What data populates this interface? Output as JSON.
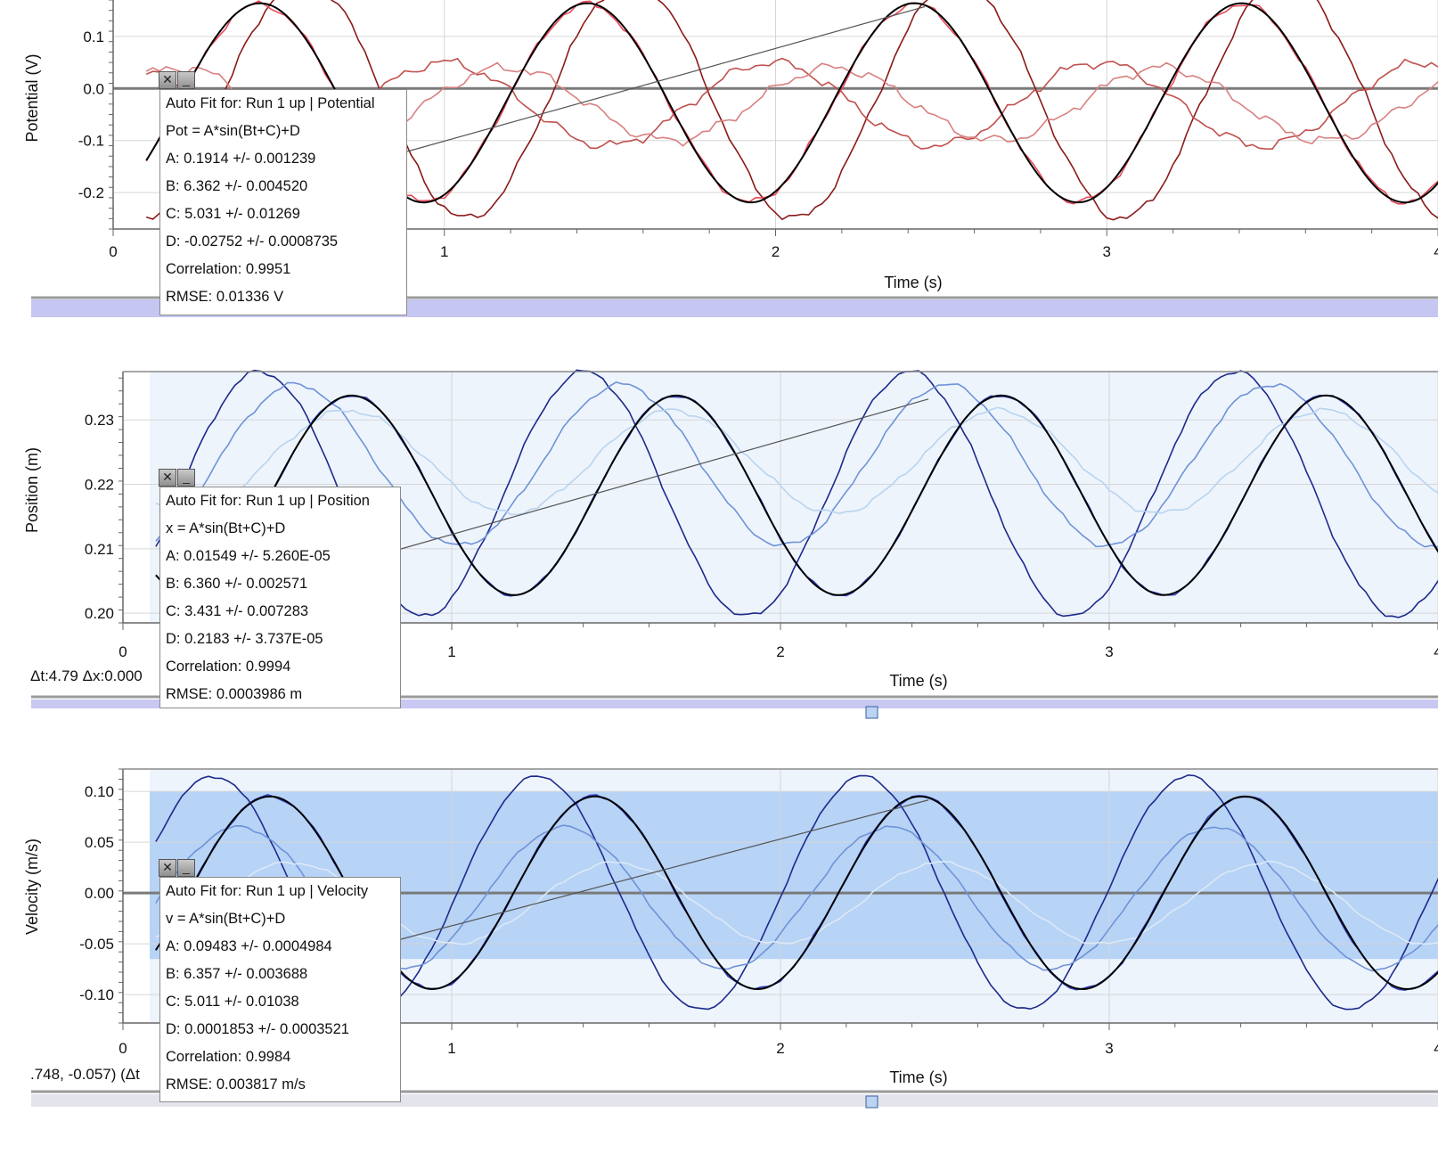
{
  "chart_data": [
    {
      "type": "line",
      "panel": "potential",
      "xlabel": "Time (s)",
      "ylabel": "Potential (V)",
      "xlim": [
        0,
        4
      ],
      "ylim": [
        -0.27,
        0.17
      ],
      "xticks": [
        "0",
        "1",
        "2",
        "3",
        "4"
      ],
      "yticks": [
        "0.1",
        "0.0",
        "-0.1",
        "-0.2"
      ],
      "ytick_values": [
        0.1,
        0.0,
        -0.1,
        -0.2
      ],
      "series": [
        {
          "color": "#8b1a1a",
          "amplitude": 0.23,
          "phase": 4.2,
          "offset": -0.02,
          "noise": 0.01
        },
        {
          "color": "#c0504d",
          "amplitude": 0.08,
          "phase": 1.5,
          "offset": -0.03,
          "noise": 0.012
        },
        {
          "color": "#d88080",
          "amplitude": 0.07,
          "phase": 0.3,
          "offset": -0.03,
          "noise": 0.012
        },
        {
          "color": "#e84a5a",
          "amplitude": 0.19,
          "phase": 5.03,
          "offset": -0.028,
          "noise": 0.008
        }
      ],
      "fit": {
        "A": 0.1914,
        "B": 6.362,
        "C": 5.031,
        "D": -0.02752,
        "color": "#000000"
      },
      "fit_box": [
        "Auto Fit for: Run 1 up | Potential",
        "Pot = A*sin(Bt+C)+D",
        "A: 0.1914 +/- 0.001239",
        "B: 6.362 +/- 0.004520",
        "C: 5.031 +/- 0.01269",
        "D: -0.02752 +/- 0.0008735",
        "Correlation: 0.9951",
        "RMSE: 0.01336 V"
      ]
    },
    {
      "type": "line",
      "panel": "position",
      "xlabel": "Time (s)",
      "ylabel": "Position (m)",
      "xlim": [
        0,
        4
      ],
      "ylim": [
        0.1985,
        0.2375
      ],
      "xticks": [
        "0",
        "1",
        "2",
        "3",
        "4"
      ],
      "yticks": [
        "0.23",
        "0.22",
        "0.21",
        "0.20"
      ],
      "ytick_values": [
        0.23,
        0.22,
        0.21,
        0.2
      ],
      "series": [
        {
          "color": "#1c2a8c",
          "amplitude": 0.019,
          "phase": 5.2,
          "offset": 0.2185,
          "noise": 0.0005
        },
        {
          "color": "#6f93d8",
          "amplitude": 0.0125,
          "phase": 4.5,
          "offset": 0.223,
          "noise": 0.0005
        },
        {
          "color": "#b8d4f0",
          "amplitude": 0.008,
          "phase": 3.5,
          "offset": 0.2235,
          "noise": 0.0005
        },
        {
          "color": "#3040c0",
          "amplitude": 0.0155,
          "phase": 3.431,
          "offset": 0.2183,
          "noise": 0.0003
        }
      ],
      "fit": {
        "A": 0.01549,
        "B": 6.36,
        "C": 3.431,
        "D": 0.2183,
        "color": "#000000"
      },
      "fit_box": [
        "Auto Fit for: Run 1 up | Position",
        "x = A*sin(Bt+C)+D",
        "A: 0.01549 +/- 5.260E-05",
        "B: 6.360 +/- 0.002571",
        "C: 3.431 +/- 0.007283",
        "D: 0.2183 +/- 3.737E-05",
        "Correlation: 0.9994",
        "RMSE: 0.0003986 m"
      ],
      "readout": "Δt:4.79 Δx:0.000"
    },
    {
      "type": "line",
      "panel": "velocity",
      "xlabel": "Time (s)",
      "ylabel": "Velocity (m/s)",
      "xlim": [
        0,
        4
      ],
      "ylim": [
        -0.128,
        0.122
      ],
      "xticks": [
        "0",
        "1",
        "2",
        "3",
        "4"
      ],
      "yticks": [
        "0.10",
        "0.05",
        "0.00",
        "-0.05",
        "-0.10"
      ],
      "ytick_values": [
        0.1,
        0.05,
        0.0,
        -0.05,
        -0.1
      ],
      "series": [
        {
          "color": "#1c2a8c",
          "amplitude": 0.115,
          "phase": 6.1,
          "offset": 0.0,
          "noise": 0.002
        },
        {
          "color": "#6f93d8",
          "amplitude": 0.07,
          "phase": 5.6,
          "offset": -0.005,
          "noise": 0.002
        },
        {
          "color": "#dce9f7",
          "amplitude": 0.04,
          "phase": 4.6,
          "offset": -0.01,
          "noise": 0.002
        },
        {
          "color": "#3040c0",
          "amplitude": 0.095,
          "phase": 5.011,
          "offset": 0.0002,
          "noise": 0.002
        }
      ],
      "fit": {
        "A": 0.09483,
        "B": 6.357,
        "C": 5.011,
        "D": 0.0001853,
        "color": "#000000"
      },
      "fit_box": [
        "Auto Fit for: Run 1 up | Velocity",
        "v = A*sin(Bt+C)+D",
        "A: 0.09483 +/- 0.0004984",
        "B: 6.357 +/- 0.003688",
        "C: 5.011 +/- 0.01038",
        "D: 0.0001853 +/- 0.0003521",
        "Correlation: 0.9984",
        "RMSE: 0.003817 m/s"
      ],
      "readout": ".748, -0.057) (Δt"
    }
  ],
  "fit_buttons": {
    "close": "✕",
    "minimize": "_"
  }
}
